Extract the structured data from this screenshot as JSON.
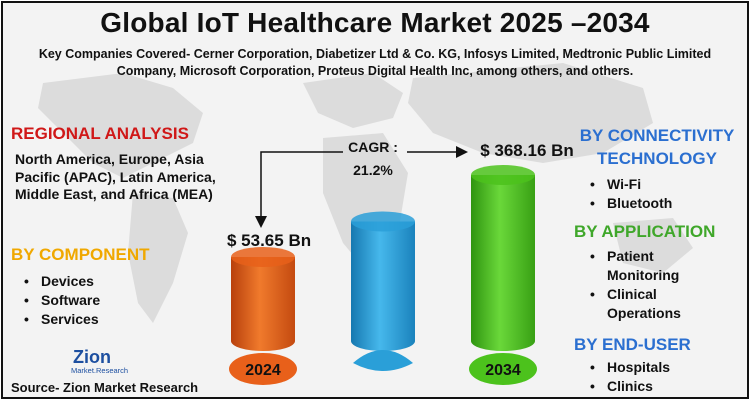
{
  "title": "Global IoT Healthcare Market 2025 –2034",
  "subtitle": "Key Companies Covered- Cerner Corporation, Diabetizer Ltd & Co. KG, Infosys Limited, Medtronic Public Limited Company, Microsoft Corporation, Proteus Digital Health Inc, among others, and others.",
  "regional": {
    "heading": "REGIONAL ANALYSIS",
    "text": "North America, Europe, Asia Pacific (APAC), Latin America, Middle East, and Africa (MEA)"
  },
  "component": {
    "heading": "BY COMPONENT",
    "items": [
      "Devices",
      "Software",
      "Services"
    ]
  },
  "connectivity": {
    "heading_line1": "BY CONNECTIVITY",
    "heading_line2": "TECHNOLOGY",
    "items": [
      "Wi-Fi",
      "Bluetooth"
    ]
  },
  "application": {
    "heading": "BY APPLICATION",
    "items": [
      "Patient Monitoring",
      "Clinical Operations"
    ]
  },
  "end_user": {
    "heading": "BY END-USER",
    "items": [
      "Hospitals",
      "Clinics"
    ]
  },
  "source": "Source- Zion Market Research",
  "logo": {
    "word": "Zion",
    "sub": "Market.Research"
  },
  "colors": {
    "title": "#111111",
    "regional": "#d01818",
    "component": "#f0a800",
    "connectivity": "#2b6fd0",
    "application": "#3fa72a",
    "end_user": "#2b6fd0",
    "bar_2024": "#e8601a",
    "bar_mid": "#2a9fd8",
    "bar_2034": "#4cc21c"
  },
  "chart_data": {
    "type": "bar",
    "categories": [
      "2024",
      "",
      "2034"
    ],
    "values": [
      53.65,
      null,
      368.16
    ],
    "value_labels": [
      "$ 53.65 Bn",
      "",
      "$ 368.16 Bn"
    ],
    "cagr_label_line1": "CAGR :",
    "cagr_label_line2": "21.2%",
    "bar_colors": [
      "#e8601a",
      "#2a9fd8",
      "#4cc21c"
    ],
    "middle_bar_relative_height": 0.72
  }
}
